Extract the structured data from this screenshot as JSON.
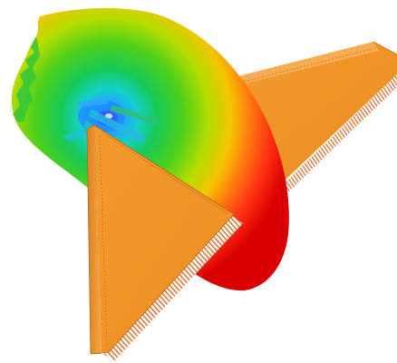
{
  "scene": {
    "background_color": "#ffffff",
    "colormap": [
      "#1e90ff",
      "#00d0d0",
      "#00c853",
      "#7cd300",
      "#d4e000",
      "#ffa000",
      "#ff3b10",
      "#e00000"
    ],
    "fin_color": "#f0952b",
    "fin_edge_color": "#c8741c",
    "fin_face_color": "#f4a23b",
    "tooth_color": "#d9793a"
  }
}
